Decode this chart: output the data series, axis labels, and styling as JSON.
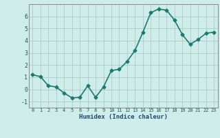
{
  "x": [
    0,
    1,
    2,
    3,
    4,
    5,
    6,
    7,
    8,
    9,
    10,
    11,
    12,
    13,
    14,
    15,
    16,
    17,
    18,
    19,
    20,
    21,
    22,
    23
  ],
  "y": [
    1.2,
    1.05,
    0.3,
    0.2,
    -0.3,
    -0.7,
    -0.65,
    0.3,
    -0.65,
    0.2,
    1.55,
    1.65,
    2.3,
    3.2,
    4.7,
    6.3,
    6.6,
    6.5,
    5.7,
    4.5,
    3.7,
    4.1,
    4.6,
    4.7
  ],
  "line_color": "#1a7a6e",
  "marker": "D",
  "marker_size": 2.5,
  "linewidth": 1.2,
  "bg_color": "#ceecea",
  "grid_color": "#b0ceca",
  "xlabel": "Humidex (Indice chaleur)",
  "ylim": [
    -1.5,
    7.0
  ],
  "yticks": [
    -1,
    0,
    1,
    2,
    3,
    4,
    5,
    6
  ],
  "xticks": [
    0,
    1,
    2,
    3,
    4,
    5,
    6,
    7,
    8,
    9,
    10,
    11,
    12,
    13,
    14,
    15,
    16,
    17,
    18,
    19,
    20,
    21,
    22,
    23
  ],
  "tick_color": "#1a5a5a",
  "label_color": "#1a4a6e"
}
